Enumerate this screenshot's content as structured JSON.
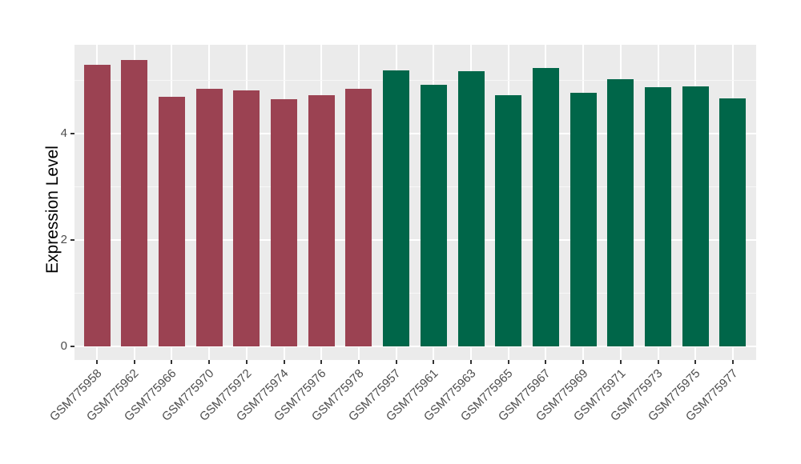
{
  "chart_data": {
    "type": "bar",
    "title": "",
    "xlabel": "",
    "ylabel": "Expression Level",
    "ylim": [
      0,
      5.66
    ],
    "yticks": [
      0,
      2,
      4
    ],
    "minor_gridlines": [
      1,
      3,
      5
    ],
    "grid": true,
    "legend_position": "none",
    "categories": [
      "GSM775958",
      "GSM775962",
      "GSM775966",
      "GSM775970",
      "GSM775972",
      "GSM775974",
      "GSM775976",
      "GSM775978",
      "GSM775957",
      "GSM775961",
      "GSM775963",
      "GSM775965",
      "GSM775967",
      "GSM775969",
      "GSM775971",
      "GSM775973",
      "GSM775975",
      "GSM775977"
    ],
    "values": [
      5.29,
      5.38,
      4.68,
      4.84,
      4.8,
      4.64,
      4.71,
      4.84,
      5.18,
      4.91,
      5.17,
      4.71,
      5.23,
      4.76,
      5.02,
      4.86,
      4.88,
      4.66
    ],
    "groups": [
      "group1",
      "group1",
      "group1",
      "group1",
      "group1",
      "group1",
      "group1",
      "group1",
      "group2",
      "group2",
      "group2",
      "group2",
      "group2",
      "group2",
      "group2",
      "group2",
      "group2",
      "group2"
    ],
    "group_colors": {
      "group1": "#9B4252",
      "group2": "#006649"
    }
  },
  "colors": {
    "page_background": "#FFFFFF",
    "panel_background": "#EBEBEB",
    "grid_major": "#FFFFFF",
    "grid_minor": "#F7F7F7",
    "axis_text": "#4D4D4D",
    "axis_title": "#000000",
    "tick_mark": "#333333"
  }
}
